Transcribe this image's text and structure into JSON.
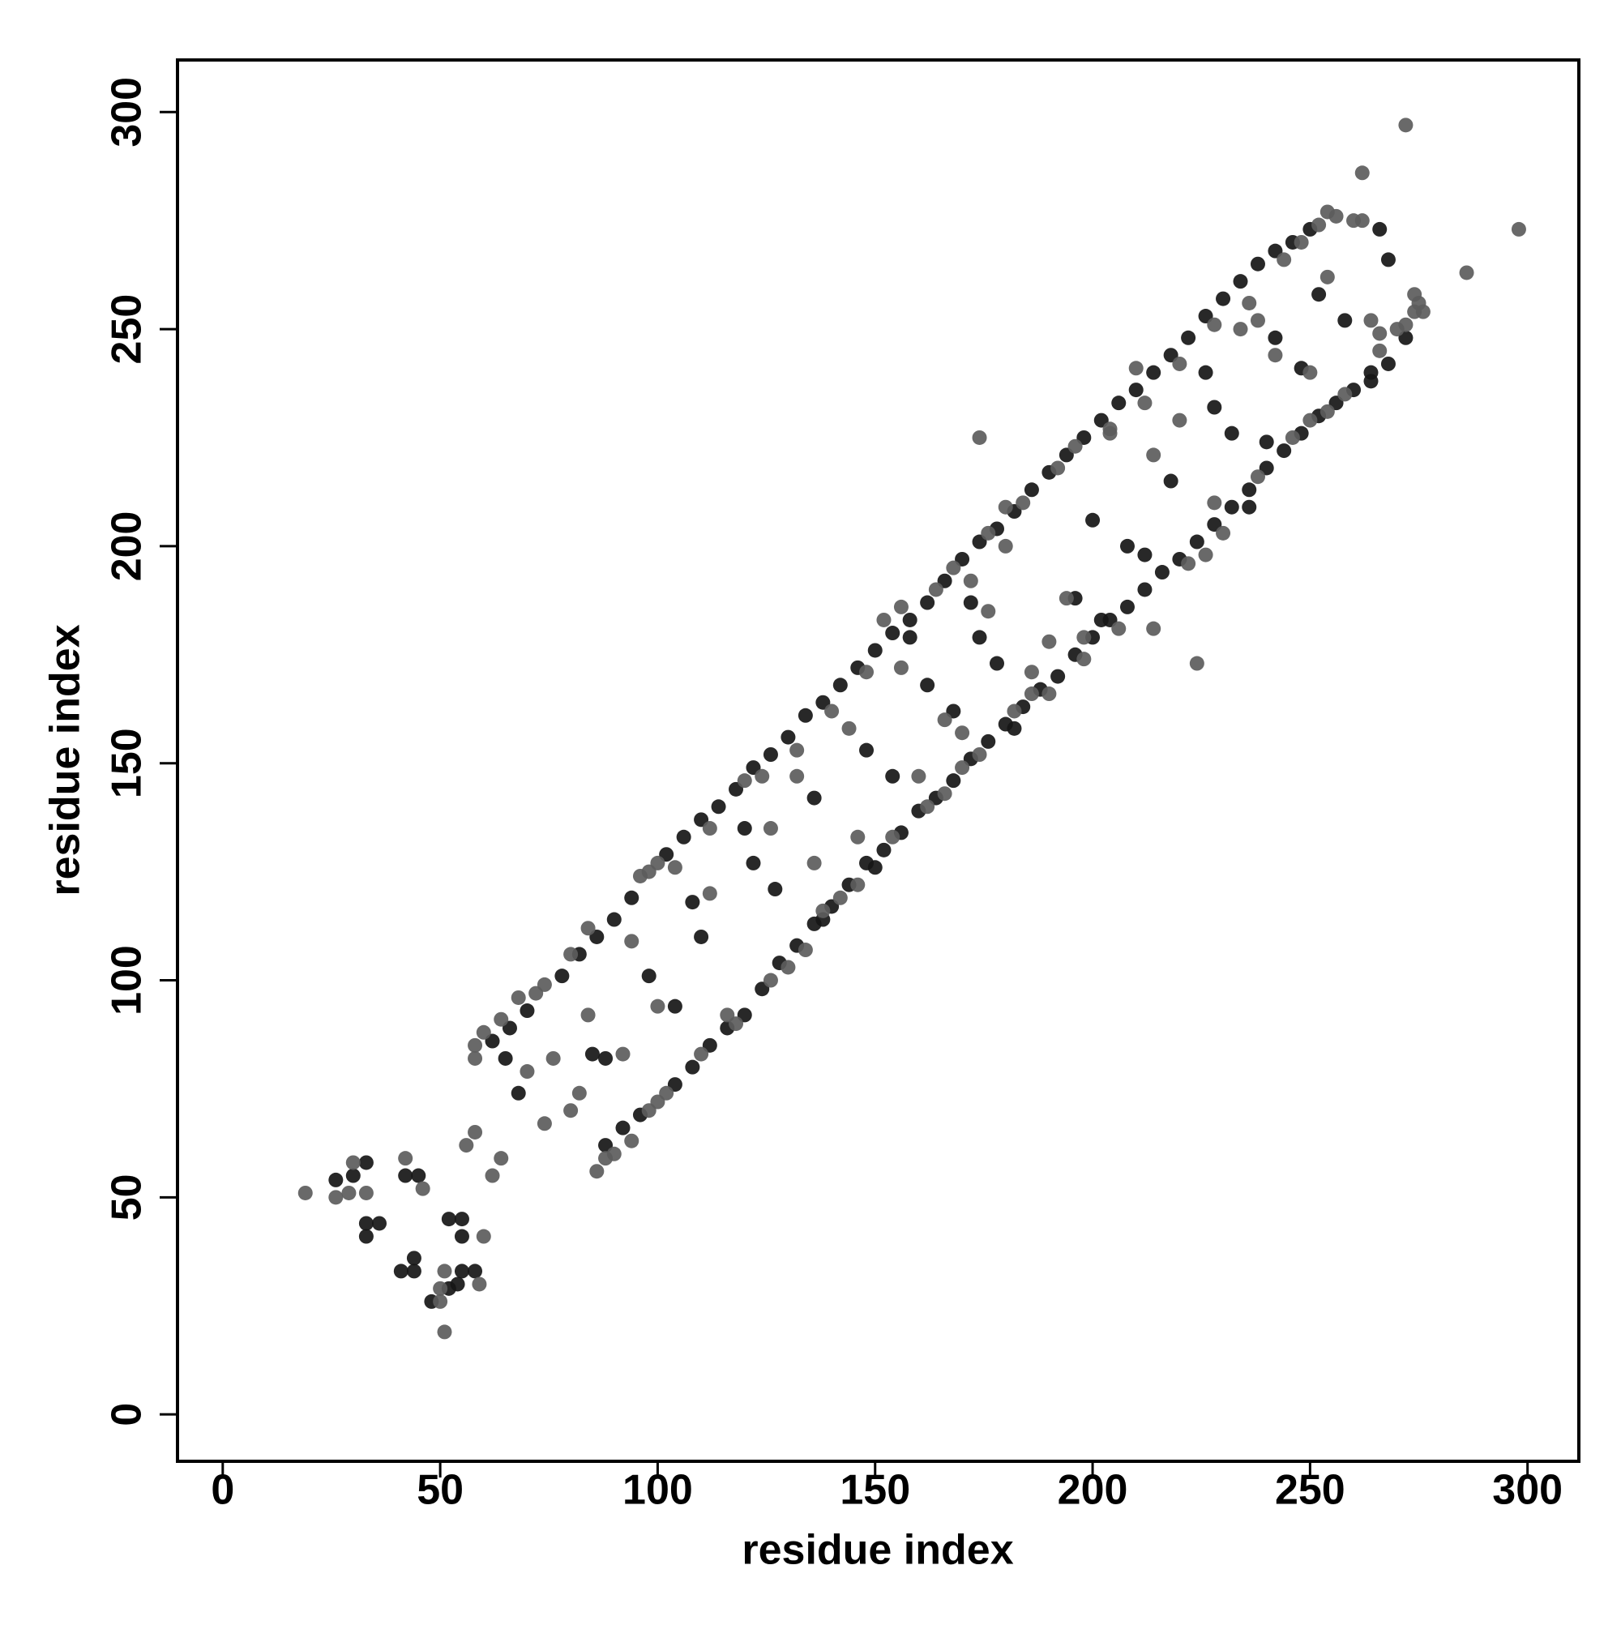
{
  "chart_data": {
    "type": "scatter",
    "x_label": "residue index",
    "y_label": "residue index",
    "xlim": [
      -10.4,
      311.8
    ],
    "ylim": [
      -10.8,
      312
    ],
    "xticks": [
      0,
      50,
      100,
      150,
      200,
      250,
      300
    ],
    "yticks": [
      0,
      50,
      100,
      150,
      200,
      250,
      300
    ],
    "grid": false,
    "series": [
      {
        "color": "#161616",
        "x": [
          62,
          66,
          70,
          78,
          82,
          86,
          90,
          94,
          102,
          106,
          110,
          114,
          118,
          122,
          126,
          130,
          134,
          138,
          142,
          146,
          150,
          154,
          158,
          162,
          166,
          170,
          174,
          178,
          182,
          186,
          190,
          194,
          198,
          202,
          206,
          210,
          214,
          218,
          222,
          226,
          230,
          234,
          238,
          242,
          246,
          250,
          266,
          88,
          92,
          96,
          104,
          108,
          112,
          116,
          120,
          124,
          128,
          132,
          136,
          140,
          144,
          148,
          152,
          156,
          160,
          164,
          168,
          172,
          176,
          180,
          184,
          188,
          192,
          196,
          200,
          204,
          208,
          212,
          216,
          220,
          224,
          228,
          232,
          236,
          240,
          244,
          248,
          252,
          256,
          260,
          264,
          268,
          272,
          65,
          68,
          85,
          88,
          98,
          104,
          108,
          110,
          120,
          122,
          127,
          136,
          138,
          148,
          150,
          154,
          158,
          162,
          168,
          172,
          174,
          178,
          182,
          196,
          200,
          202,
          208,
          212,
          218,
          226,
          228,
          232,
          236,
          240,
          242,
          248,
          252,
          258,
          268,
          264,
          26,
          30,
          33,
          33,
          33,
          36,
          41,
          42,
          44,
          44,
          45,
          48,
          52,
          52,
          55,
          55,
          55,
          58,
          54
        ],
        "values": [
          86,
          89,
          93,
          101,
          106,
          110,
          114,
          119,
          129,
          133,
          137,
          140,
          144,
          149,
          152,
          156,
          161,
          164,
          168,
          172,
          176,
          180,
          183,
          187,
          192,
          197,
          201,
          204,
          208,
          213,
          217,
          221,
          225,
          229,
          233,
          236,
          240,
          244,
          248,
          253,
          257,
          261,
          265,
          268,
          270,
          273,
          273,
          62,
          66,
          69,
          76,
          80,
          85,
          89,
          92,
          98,
          104,
          108,
          113,
          117,
          122,
          127,
          130,
          134,
          139,
          142,
          146,
          151,
          155,
          159,
          163,
          167,
          170,
          175,
          179,
          183,
          186,
          190,
          194,
          197,
          201,
          205,
          209,
          213,
          218,
          222,
          226,
          230,
          233,
          236,
          238,
          242,
          248,
          82,
          74,
          83,
          82,
          101,
          94,
          118,
          110,
          135,
          127,
          121,
          142,
          114,
          153,
          126,
          147,
          179,
          168,
          162,
          187,
          179,
          173,
          158,
          188,
          206,
          183,
          200,
          198,
          215,
          240,
          232,
          226,
          209,
          224,
          248,
          241,
          258,
          252,
          266,
          240,
          54,
          55,
          58,
          44,
          41,
          44,
          33,
          55,
          36,
          33,
          55,
          26,
          45,
          29,
          45,
          33,
          41,
          33,
          30
        ]
      },
      {
        "color": "#5c5c5c",
        "x": [
          58,
          60,
          64,
          68,
          72,
          74,
          80,
          84,
          96,
          98,
          100,
          104,
          112,
          120,
          124,
          132,
          140,
          148,
          152,
          156,
          164,
          168,
          176,
          180,
          184,
          192,
          196,
          204,
          212,
          220,
          228,
          236,
          244,
          248,
          252,
          254,
          256,
          260,
          262,
          90,
          94,
          98,
          100,
          102,
          110,
          118,
          126,
          130,
          134,
          138,
          142,
          146,
          154,
          162,
          166,
          170,
          174,
          182,
          186,
          190,
          198,
          206,
          214,
          222,
          226,
          230,
          238,
          246,
          250,
          254,
          258,
          266,
          270,
          272,
          274,
          275,
          276,
          58,
          58,
          62,
          64,
          70,
          74,
          76,
          80,
          82,
          84,
          86,
          88,
          92,
          94,
          100,
          112,
          116,
          126,
          132,
          136,
          144,
          146,
          156,
          160,
          166,
          170,
          172,
          174,
          176,
          180,
          186,
          190,
          194,
          198,
          204,
          210,
          214,
          220,
          224,
          228,
          234,
          238,
          242,
          250,
          254,
          262,
          264,
          266,
          272,
          274,
          286,
          298,
          19,
          26,
          29,
          30,
          33,
          42,
          46,
          50,
          50,
          51,
          51,
          56,
          59,
          60
        ],
        "values": [
          85,
          88,
          91,
          96,
          97,
          99,
          106,
          112,
          124,
          125,
          127,
          126,
          135,
          146,
          147,
          153,
          162,
          171,
          183,
          186,
          190,
          195,
          203,
          209,
          210,
          218,
          223,
          226,
          233,
          242,
          251,
          256,
          266,
          270,
          274,
          277,
          276,
          275,
          275,
          60,
          63,
          70,
          72,
          74,
          83,
          90,
          100,
          103,
          107,
          116,
          119,
          122,
          133,
          140,
          143,
          149,
          152,
          162,
          166,
          166,
          174,
          181,
          181,
          196,
          198,
          203,
          216,
          225,
          229,
          231,
          235,
          245,
          250,
          251,
          254,
          256,
          254,
          82,
          65,
          55,
          59,
          79,
          67,
          82,
          70,
          74,
          92,
          56,
          59,
          83,
          109,
          94,
          120,
          92,
          135,
          147,
          127,
          158,
          133,
          172,
          147,
          160,
          157,
          192,
          225,
          185,
          200,
          171,
          178,
          188,
          179,
          227,
          241,
          221,
          229,
          173,
          210,
          250,
          252,
          244,
          240,
          262,
          286,
          252,
          249,
          297,
          258,
          263,
          273,
          51,
          50,
          51,
          58,
          51,
          59,
          52,
          26,
          29,
          19,
          33,
          62,
          30,
          41
        ]
      }
    ]
  }
}
